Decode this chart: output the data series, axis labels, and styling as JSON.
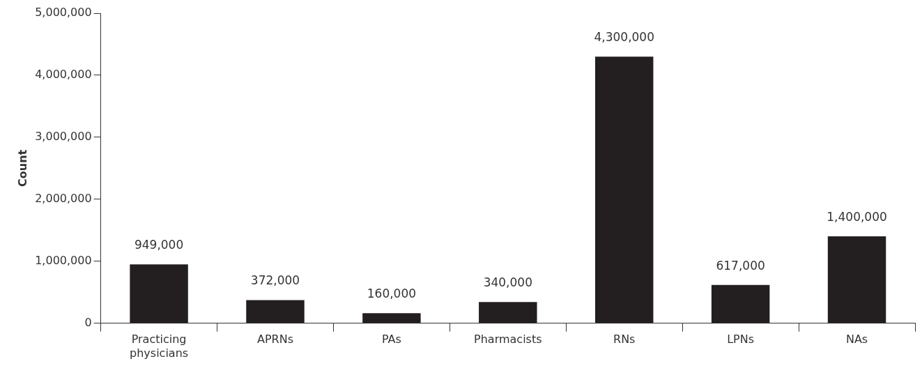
{
  "chart_data": {
    "type": "bar",
    "ylabel": "Count",
    "categories": [
      "Practicing physicians",
      "APRNs",
      "PAs",
      "Pharmacists",
      "RNs",
      "LPNs",
      "NAs"
    ],
    "values": [
      949000,
      372000,
      160000,
      340000,
      4300000,
      617000,
      1400000
    ],
    "value_labels": [
      "949,000",
      "372,000",
      "160,000",
      "340,000",
      "4,300,000",
      "617,000",
      "1,400,000"
    ],
    "color": "#231f20",
    "ylim": [
      0,
      5000000
    ],
    "yticks": [
      0,
      {
        "value": 1000000,
        "label": "1,000,000"
      },
      {
        "value": 2000000,
        "label": "2,000,000"
      },
      {
        "value": 3000000,
        "label": "3,000,000"
      },
      {
        "value": 4000000,
        "label": "4,000,000"
      },
      {
        "value": 5000000,
        "label": "5,000,000"
      }
    ],
    "grid": false,
    "legend": false
  }
}
